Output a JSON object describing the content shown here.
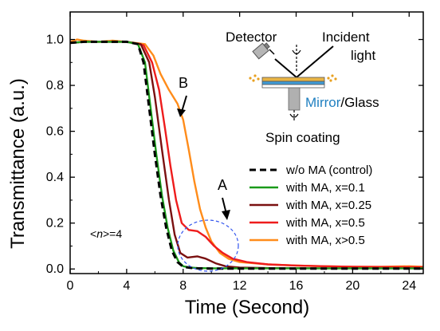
{
  "chart_data": {
    "type": "line",
    "xlabel": "Time (Second)",
    "ylabel": "Transmittance (a.u.)",
    "xlim": [
      0,
      25
    ],
    "ylim": [
      -0.02,
      1.12
    ],
    "xticks": [
      0,
      4,
      8,
      12,
      16,
      20,
      24
    ],
    "yticks": [
      0.0,
      0.2,
      0.4,
      0.6,
      0.8,
      1.0
    ],
    "xtick_labels": [
      "0",
      "4",
      "8",
      "12",
      "16",
      "20",
      "24"
    ],
    "ytick_labels": [
      "0.0",
      "0.2",
      "0.4",
      "0.6",
      "0.8",
      "1.0"
    ],
    "legend_position": "right",
    "series": [
      {
        "name": "w/o MA (control)",
        "color": "#000000",
        "dashed": true,
        "x": [
          0,
          1,
          2,
          3,
          4,
          4.8,
          5.2,
          5.6,
          6.0,
          6.4,
          6.8,
          7.2,
          7.6,
          8.0,
          8.5,
          9,
          10,
          12,
          16,
          20,
          25
        ],
        "y": [
          0.985,
          0.99,
          0.99,
          0.99,
          0.99,
          0.98,
          0.9,
          0.7,
          0.5,
          0.32,
          0.18,
          0.08,
          0.03,
          0.01,
          0.005,
          0.003,
          0.002,
          0.002,
          0.002,
          0.002,
          0.002
        ]
      },
      {
        "name": "with MA, x=0.1",
        "color": "#1a9a1a",
        "dashed": false,
        "x": [
          0,
          1,
          2,
          3,
          4,
          4.8,
          5.3,
          5.7,
          6.1,
          6.5,
          6.9,
          7.3,
          7.7,
          8.0,
          8.5,
          9,
          10,
          12,
          16,
          20,
          25
        ],
        "y": [
          0.985,
          0.99,
          0.99,
          0.99,
          0.99,
          0.98,
          0.9,
          0.7,
          0.5,
          0.32,
          0.18,
          0.08,
          0.03,
          0.012,
          0.006,
          0.004,
          0.003,
          0.003,
          0.003,
          0.003,
          0.003
        ]
      },
      {
        "name": "with MA, x=0.25",
        "color": "#7a1010",
        "dashed": false,
        "x": [
          0,
          1,
          2,
          3,
          4,
          5.0,
          5.6,
          6.0,
          6.5,
          7.0,
          7.4,
          7.8,
          8.3,
          9.0,
          9.6,
          10.3,
          11,
          12,
          14,
          18,
          25
        ],
        "y": [
          0.985,
          0.99,
          0.99,
          0.99,
          0.99,
          0.98,
          0.9,
          0.75,
          0.52,
          0.3,
          0.15,
          0.07,
          0.05,
          0.055,
          0.045,
          0.025,
          0.012,
          0.006,
          0.004,
          0.003,
          0.003
        ]
      },
      {
        "name": "with MA, x=0.5",
        "color": "#ee1c1c",
        "dashed": false,
        "x": [
          0,
          1,
          2,
          3,
          4,
          5.2,
          5.8,
          6.3,
          6.7,
          7.1,
          7.5,
          7.9,
          8.4,
          9.0,
          9.6,
          10.2,
          10.8,
          11.5,
          12.5,
          14,
          16,
          18,
          20,
          22,
          25
        ],
        "y": [
          0.985,
          0.99,
          0.99,
          0.99,
          0.99,
          0.975,
          0.9,
          0.78,
          0.62,
          0.45,
          0.3,
          0.2,
          0.17,
          0.165,
          0.14,
          0.1,
          0.07,
          0.045,
          0.03,
          0.02,
          0.015,
          0.012,
          0.01,
          0.009,
          0.008
        ]
      },
      {
        "name": "with MA, x>0.5",
        "color": "#ff8c1a",
        "dashed": false,
        "x": [
          0,
          0.5,
          1,
          2,
          3,
          4,
          5.3,
          5.9,
          6.4,
          7.0,
          7.6,
          8.0,
          8.4,
          8.8,
          9.2,
          9.6,
          10.0,
          10.6,
          11.2,
          12,
          13,
          14,
          16,
          18,
          20,
          22,
          24,
          25
        ],
        "y": [
          0.99,
          1.0,
          0.995,
          0.99,
          0.995,
          0.99,
          0.98,
          0.93,
          0.85,
          0.78,
          0.72,
          0.65,
          0.52,
          0.38,
          0.26,
          0.18,
          0.12,
          0.07,
          0.045,
          0.03,
          0.025,
          0.02,
          0.015,
          0.012,
          0.01,
          0.01,
          0.012,
          0.01
        ]
      }
    ],
    "annotations": {
      "label_A": "A",
      "label_B": "B",
      "n_label_prefix": "<",
      "n_label_var": "n",
      "n_label_suffix": ">=4"
    },
    "inset": {
      "detector": "Detector",
      "incident_line1": "Incident",
      "incident_line2": "light",
      "mirror": "Mirror",
      "glass": "/Glass",
      "spin": "Spin coating",
      "mirror_color": "#1f7fc0"
    }
  }
}
